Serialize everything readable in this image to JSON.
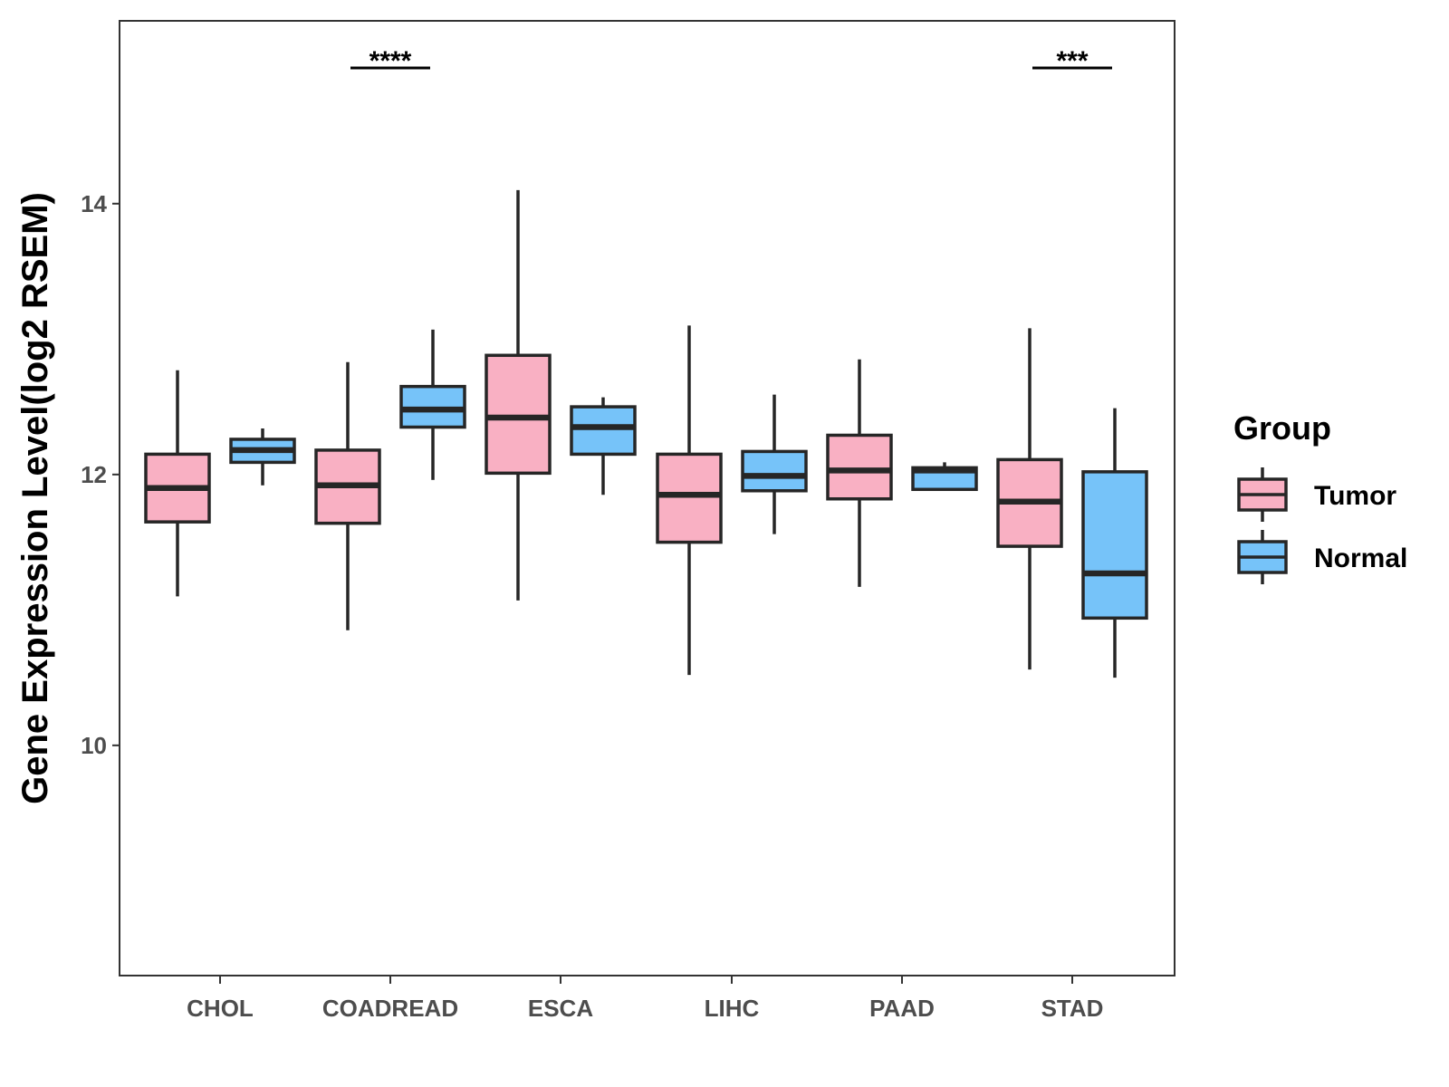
{
  "chart_data": {
    "type": "boxplot",
    "title": "",
    "xlabel": "",
    "ylabel": "Gene Expression Level(log2 RSEM)",
    "ylim": [
      8.3,
      15.35
    ],
    "yticks": [
      10,
      12,
      14
    ],
    "grid": false,
    "legend": {
      "title": "Group",
      "position": "right",
      "entries": [
        {
          "name": "Tumor",
          "color": "#F9B0C3"
        },
        {
          "name": "Normal",
          "color": "#76C3F9"
        }
      ]
    },
    "categories": [
      "CHOL",
      "COADREAD",
      "ESCA",
      "LIHC",
      "PAAD",
      "STAD"
    ],
    "series": [
      {
        "name": "Tumor",
        "color": "#F9B0C3",
        "boxes": [
          {
            "min": 11.1,
            "q1": 11.65,
            "median": 11.9,
            "q3": 12.15,
            "max": 12.77
          },
          {
            "min": 10.85,
            "q1": 11.64,
            "median": 11.92,
            "q3": 12.18,
            "max": 12.83
          },
          {
            "min": 11.07,
            "q1": 12.01,
            "median": 12.42,
            "q3": 12.88,
            "max": 14.1
          },
          {
            "min": 10.52,
            "q1": 11.5,
            "median": 11.85,
            "q3": 12.15,
            "max": 13.1
          },
          {
            "min": 11.17,
            "q1": 11.82,
            "median": 12.03,
            "q3": 12.29,
            "max": 12.85
          },
          {
            "min": 10.56,
            "q1": 11.47,
            "median": 11.8,
            "q3": 12.11,
            "max": 13.08
          }
        ]
      },
      {
        "name": "Normal",
        "color": "#76C3F9",
        "boxes": [
          {
            "min": 11.92,
            "q1": 12.09,
            "median": 12.18,
            "q3": 12.26,
            "max": 12.34
          },
          {
            "min": 11.96,
            "q1": 12.35,
            "median": 12.48,
            "q3": 12.65,
            "max": 13.07
          },
          {
            "min": 11.85,
            "q1": 12.15,
            "median": 12.35,
            "q3": 12.5,
            "max": 12.57
          },
          {
            "min": 11.56,
            "q1": 11.88,
            "median": 11.99,
            "q3": 12.17,
            "max": 12.59
          },
          {
            "min": 11.89,
            "q1": 11.89,
            "median": 12.03,
            "q3": 12.05,
            "max": 12.09
          },
          {
            "min": 10.5,
            "q1": 10.94,
            "median": 11.27,
            "q3": 12.02,
            "max": 12.49
          }
        ]
      }
    ],
    "annotations": [
      {
        "category": "COADREAD",
        "label": "****"
      },
      {
        "category": "STAD",
        "label": "***"
      }
    ]
  }
}
